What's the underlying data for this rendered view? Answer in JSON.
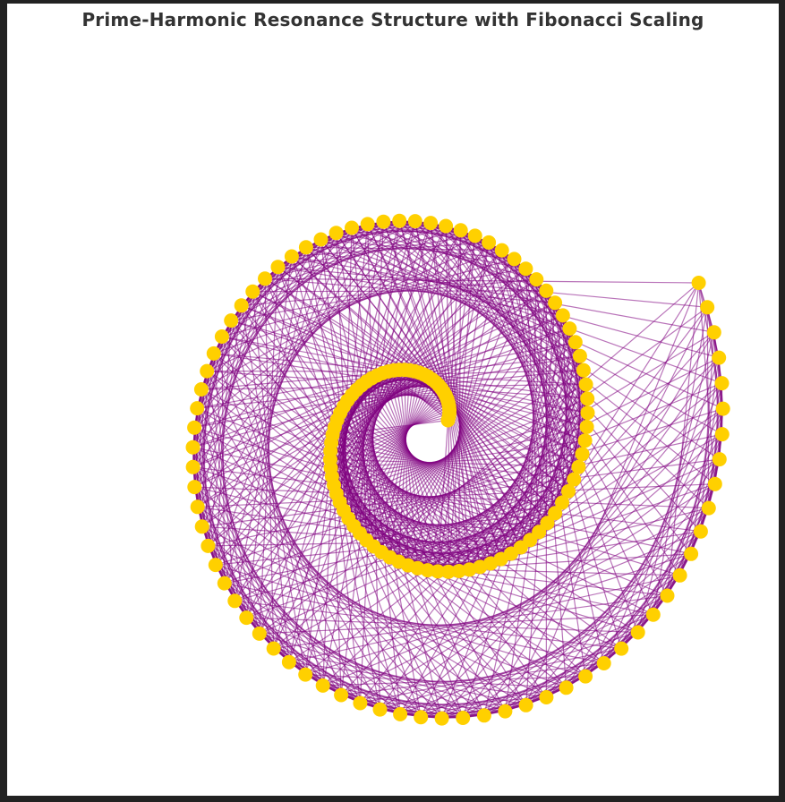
{
  "title": "Prime-Harmonic Resonance Structure with Fibonacci Scaling",
  "diagram": {
    "type": "spiral-network",
    "node_color": "#FFD000",
    "edge_color": "#800080",
    "node_count": 160,
    "turns": 2.0
  }
}
